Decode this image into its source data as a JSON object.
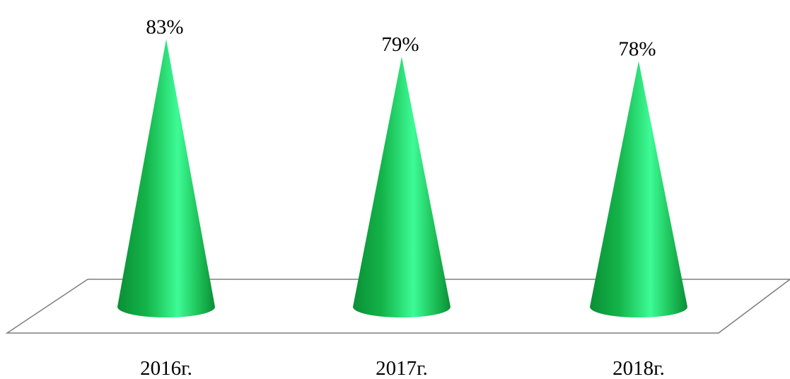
{
  "chart_data": {
    "type": "bar",
    "shape": "cone-3d",
    "categories": [
      "2016г.",
      "2017г.",
      "2018г."
    ],
    "values": [
      83,
      79,
      78
    ],
    "data_labels": [
      "83%",
      "79%",
      "78%"
    ],
    "unit": "%",
    "title": "",
    "xlabel": "",
    "ylabel": "",
    "ylim": [
      75,
      84
    ],
    "grid": false,
    "legend": "none",
    "colors": {
      "cone_dark": "#0a8f35",
      "cone_mid": "#14b44a",
      "cone_light": "#3dfb96",
      "floor_stroke": "#7f7f7f"
    }
  }
}
